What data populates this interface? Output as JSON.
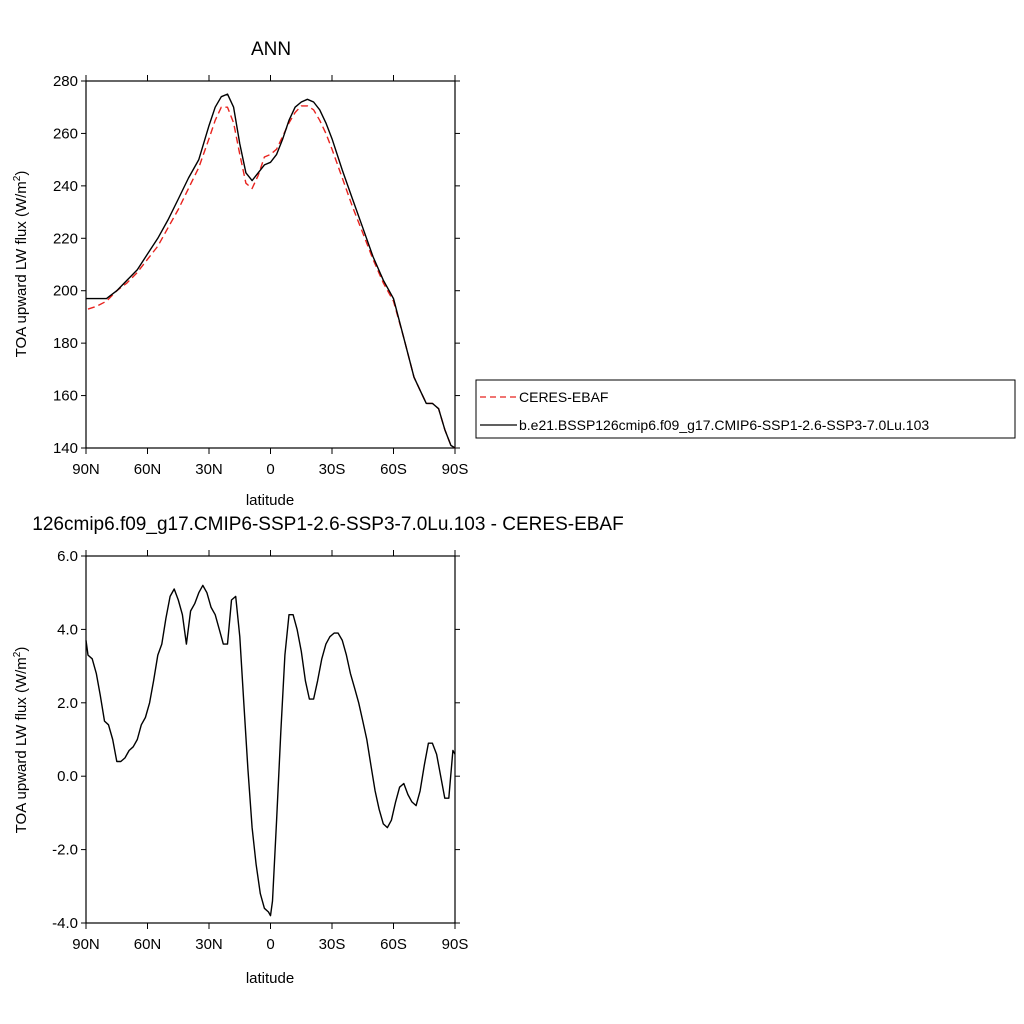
{
  "chart_data": [
    {
      "type": "line",
      "title": "ANN",
      "xlabel": "latitude",
      "ylabel": "TOA upward LW flux (W/m²)",
      "xlim": [
        90,
        -90
      ],
      "ylim": [
        140,
        280
      ],
      "xticks": [
        90,
        60,
        30,
        0,
        -30,
        -60,
        -90
      ],
      "xtick_labels": [
        "90N",
        "60N",
        "30N",
        "0",
        "30S",
        "60S",
        "90S"
      ],
      "yticks": [
        140,
        160,
        180,
        200,
        220,
        240,
        260,
        280
      ],
      "ytick_labels": [
        "140",
        "160",
        "180",
        "200",
        "220",
        "240",
        "260",
        "280"
      ],
      "legend_position": "right",
      "series": [
        {
          "name": "CERES-EBAF",
          "color": "#e8231e",
          "dash": "dashed",
          "x": [
            89,
            85,
            80,
            75,
            70,
            65,
            60,
            55,
            50,
            45,
            40,
            35,
            30,
            27,
            24,
            21,
            18,
            15,
            12,
            9,
            6,
            3,
            0,
            -3,
            -6,
            -9,
            -12,
            -15,
            -18,
            -21,
            -24,
            -27,
            -30,
            -35,
            -40,
            -45,
            -50,
            -55,
            -60,
            -65,
            -70,
            -73,
            -76,
            -79,
            -82,
            -85,
            -88,
            -90
          ],
          "y": [
            193,
            194,
            196,
            200,
            203,
            207,
            212,
            217,
            224,
            231,
            239,
            247,
            258,
            265,
            270,
            270,
            264,
            252,
            241,
            239,
            244,
            251,
            252,
            254,
            259,
            264,
            268,
            270.5,
            270.5,
            269,
            265,
            260,
            254,
            243,
            232,
            222,
            212,
            203,
            196,
            182,
            167,
            162,
            157,
            157,
            155,
            147,
            141,
            140
          ]
        },
        {
          "name": "b.e21.BSSP126cmip6.f09_g17.CMIP6-SSP1-2.6-SSP3-7.0Lu.103",
          "color": "#000000",
          "dash": "solid",
          "x": [
            90,
            85,
            80,
            75,
            70,
            65,
            60,
            55,
            50,
            45,
            40,
            35,
            30,
            27,
            24,
            21,
            18,
            15,
            12,
            9,
            6,
            3,
            0,
            -3,
            -6,
            -9,
            -12,
            -15,
            -18,
            -21,
            -24,
            -27,
            -30,
            -35,
            -40,
            -45,
            -50,
            -55,
            -60,
            -65,
            -70,
            -73,
            -76,
            -79,
            -82,
            -85,
            -88,
            -90
          ],
          "y": [
            197,
            197,
            197,
            200,
            204,
            208,
            214,
            220,
            227,
            235,
            243,
            250,
            263,
            270,
            274,
            275,
            270,
            256,
            245,
            242,
            245,
            248,
            249,
            252,
            258,
            265,
            270,
            272,
            273,
            272,
            269,
            264,
            258,
            246,
            235,
            224,
            213,
            204,
            197,
            182,
            167,
            162,
            157,
            157,
            155,
            147,
            141,
            140
          ]
        }
      ]
    },
    {
      "type": "line",
      "title": "126cmip6.f09_g17.CMIP6-SSP1-2.6-SSP3-7.0Lu.103 - CERES-EBAF",
      "xlabel": "latitude",
      "ylabel": "TOA upward LW flux (W/m²)",
      "xlim": [
        90,
        -90
      ],
      "ylim": [
        -4.0,
        6.0
      ],
      "xticks": [
        90,
        60,
        30,
        0,
        -30,
        -60,
        -90
      ],
      "xtick_labels": [
        "90N",
        "60N",
        "30N",
        "0",
        "30S",
        "60S",
        "90S"
      ],
      "yticks": [
        -4,
        -2,
        0,
        2,
        4,
        6
      ],
      "ytick_labels": [
        "-4.0",
        "-2.0",
        "0.0",
        "2.0",
        "4.0",
        "6.0"
      ],
      "series": [
        {
          "color": "#000000",
          "dash": "solid",
          "x": [
            90,
            89,
            87,
            85,
            83,
            81,
            79,
            77,
            75,
            73,
            71,
            69,
            67,
            65,
            63,
            61,
            59,
            57,
            55,
            53,
            51,
            49,
            47,
            45,
            43,
            41,
            39,
            37,
            35,
            33,
            31,
            29,
            27,
            25,
            23,
            21,
            19,
            17,
            15,
            13,
            11,
            9,
            7,
            5,
            3,
            1,
            0,
            -1,
            -3,
            -5,
            -7,
            -9,
            -11,
            -13,
            -15,
            -17,
            -19,
            -21,
            -23,
            -25,
            -27,
            -29,
            -31,
            -33,
            -35,
            -37,
            -39,
            -41,
            -43,
            -45,
            -47,
            -49,
            -51,
            -53,
            -55,
            -57,
            -59,
            -61,
            -63,
            -65,
            -67,
            -69,
            -71,
            -73,
            -75,
            -77,
            -79,
            -81,
            -83,
            -85,
            -87,
            -89,
            -90
          ],
          "y": [
            3.7,
            3.3,
            3.2,
            2.8,
            2.2,
            1.5,
            1.4,
            1.0,
            0.4,
            0.4,
            0.5,
            0.7,
            0.8,
            1.0,
            1.4,
            1.6,
            2.0,
            2.6,
            3.3,
            3.6,
            4.3,
            4.9,
            5.1,
            4.8,
            4.4,
            3.6,
            4.5,
            4.7,
            5.0,
            5.2,
            5.0,
            4.6,
            4.4,
            4.0,
            3.6,
            3.6,
            4.8,
            4.9,
            3.8,
            2.0,
            0.2,
            -1.4,
            -2.4,
            -3.2,
            -3.6,
            -3.7,
            -3.8,
            -3.4,
            -1.2,
            1.2,
            3.3,
            4.4,
            4.4,
            4.0,
            3.4,
            2.6,
            2.1,
            2.1,
            2.6,
            3.2,
            3.6,
            3.8,
            3.9,
            3.9,
            3.7,
            3.3,
            2.8,
            2.4,
            2.0,
            1.5,
            1.0,
            0.3,
            -0.4,
            -0.9,
            -1.3,
            -1.4,
            -1.2,
            -0.7,
            -0.3,
            -0.2,
            -0.5,
            -0.7,
            -0.8,
            -0.4,
            0.3,
            0.9,
            0.9,
            0.6,
            0.0,
            -0.6,
            -0.6,
            0.7,
            0.6
          ]
        }
      ]
    }
  ]
}
